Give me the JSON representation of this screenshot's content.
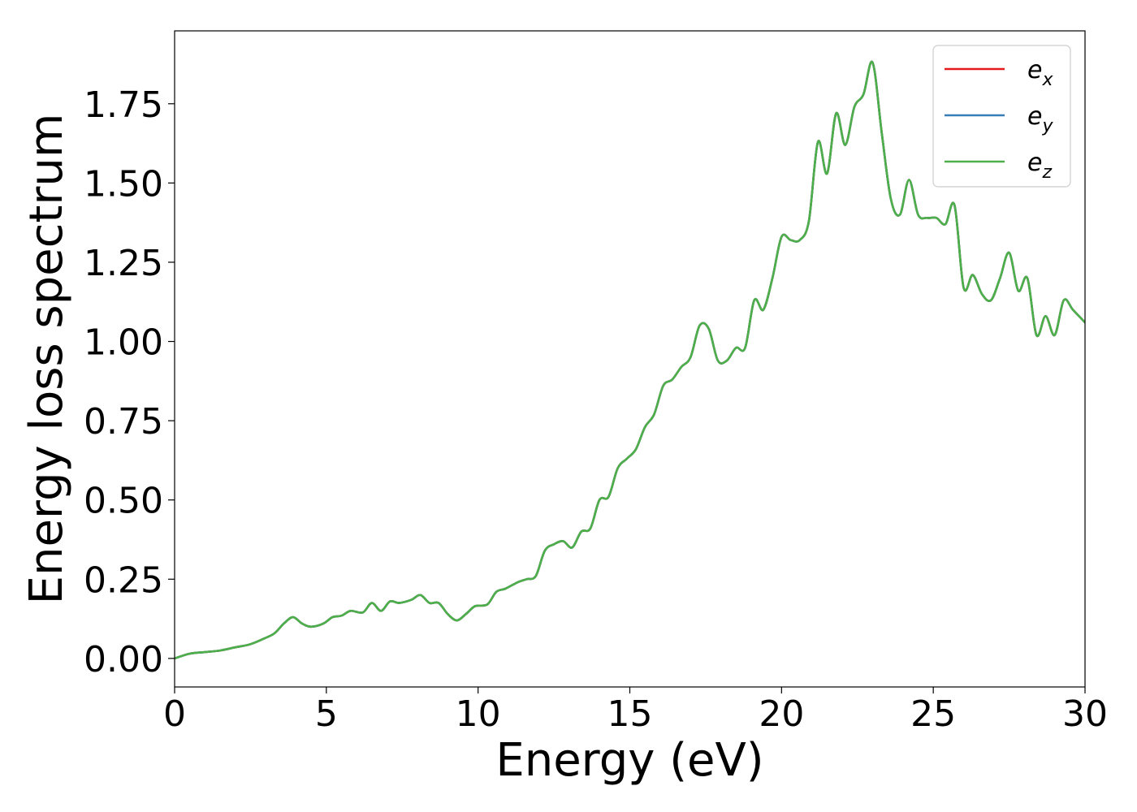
{
  "chart_data": {
    "type": "line",
    "title": "",
    "xlabel": "Energy (eV)",
    "ylabel": "Energy loss spectrum",
    "xlim": [
      0,
      30
    ],
    "ylim": [
      -0.09,
      1.98
    ],
    "xticks": [
      0,
      5,
      10,
      15,
      20,
      25,
      30
    ],
    "xtick_labels": [
      "0",
      "5",
      "10",
      "15",
      "20",
      "25",
      "30"
    ],
    "yticks": [
      0.0,
      0.25,
      0.5,
      0.75,
      1.0,
      1.25,
      1.5,
      1.75
    ],
    "ytick_labels": [
      "0.00",
      "0.25",
      "0.50",
      "0.75",
      "1.00",
      "1.25",
      "1.50",
      "1.75"
    ],
    "grid": false,
    "legend_position": "top-right",
    "x": [
      0,
      0.5,
      1,
      1.5,
      2,
      2.5,
      3,
      3.3,
      3.6,
      3.9,
      4.2,
      4.5,
      4.9,
      5.2,
      5.5,
      5.8,
      6.2,
      6.5,
      6.8,
      7.1,
      7.4,
      7.8,
      8.1,
      8.4,
      8.7,
      9,
      9.3,
      9.6,
      9.9,
      10.3,
      10.6,
      10.9,
      11.3,
      11.6,
      11.9,
      12.2,
      12.5,
      12.8,
      13.1,
      13.4,
      13.7,
      14,
      14.3,
      14.6,
      14.9,
      15.2,
      15.5,
      15.8,
      16.1,
      16.4,
      16.7,
      17,
      17.3,
      17.6,
      17.9,
      18.2,
      18.5,
      18.8,
      19.1,
      19.4,
      19.7,
      20,
      20.3,
      20.6,
      20.9,
      21.2,
      21.5,
      21.8,
      22.1,
      22.4,
      22.7,
      23,
      23.3,
      23.6,
      23.9,
      24.2,
      24.5,
      24.8,
      25.1,
      25.4,
      25.7,
      26,
      26.3,
      26.6,
      26.9,
      27.2,
      27.5,
      27.8,
      28.1,
      28.4,
      28.7,
      29,
      29.3,
      29.6,
      30
    ],
    "series": [
      {
        "name": "e_x",
        "color": "#e41a1c",
        "values": [
          0,
          0.015,
          0.02,
          0.025,
          0.035,
          0.045,
          0.065,
          0.08,
          0.11,
          0.13,
          0.11,
          0.1,
          0.11,
          0.13,
          0.135,
          0.15,
          0.145,
          0.175,
          0.15,
          0.18,
          0.175,
          0.185,
          0.2,
          0.175,
          0.175,
          0.14,
          0.12,
          0.14,
          0.165,
          0.17,
          0.21,
          0.22,
          0.24,
          0.25,
          0.26,
          0.34,
          0.36,
          0.37,
          0.35,
          0.4,
          0.41,
          0.5,
          0.51,
          0.6,
          0.63,
          0.66,
          0.73,
          0.77,
          0.86,
          0.88,
          0.92,
          0.95,
          1.05,
          1.04,
          0.94,
          0.94,
          0.98,
          0.98,
          1.13,
          1.1,
          1.2,
          1.33,
          1.32,
          1.32,
          1.38,
          1.63,
          1.53,
          1.72,
          1.62,
          1.74,
          1.78,
          1.88,
          1.66,
          1.45,
          1.4,
          1.51,
          1.4,
          1.39,
          1.39,
          1.37,
          1.43,
          1.17,
          1.21,
          1.15,
          1.13,
          1.2,
          1.28,
          1.16,
          1.2,
          1.02,
          1.08,
          1.02,
          1.13,
          1.1,
          1.06
        ]
      },
      {
        "name": "e_y",
        "color": "#377eb8",
        "values": [
          0,
          0.015,
          0.02,
          0.025,
          0.035,
          0.045,
          0.065,
          0.08,
          0.11,
          0.13,
          0.11,
          0.1,
          0.11,
          0.13,
          0.135,
          0.15,
          0.145,
          0.175,
          0.15,
          0.18,
          0.175,
          0.185,
          0.2,
          0.175,
          0.175,
          0.14,
          0.12,
          0.14,
          0.165,
          0.17,
          0.21,
          0.22,
          0.24,
          0.25,
          0.26,
          0.34,
          0.36,
          0.37,
          0.35,
          0.4,
          0.41,
          0.5,
          0.51,
          0.6,
          0.63,
          0.66,
          0.73,
          0.77,
          0.86,
          0.88,
          0.92,
          0.95,
          1.05,
          1.04,
          0.94,
          0.94,
          0.98,
          0.98,
          1.13,
          1.1,
          1.2,
          1.33,
          1.32,
          1.32,
          1.38,
          1.63,
          1.53,
          1.72,
          1.62,
          1.74,
          1.78,
          1.88,
          1.66,
          1.45,
          1.4,
          1.51,
          1.4,
          1.39,
          1.39,
          1.37,
          1.43,
          1.17,
          1.21,
          1.15,
          1.13,
          1.2,
          1.28,
          1.16,
          1.2,
          1.02,
          1.08,
          1.02,
          1.13,
          1.1,
          1.06
        ]
      },
      {
        "name": "e_z",
        "color": "#4daf4a",
        "values": [
          0,
          0.015,
          0.02,
          0.025,
          0.035,
          0.045,
          0.065,
          0.08,
          0.11,
          0.13,
          0.11,
          0.1,
          0.11,
          0.13,
          0.135,
          0.15,
          0.145,
          0.175,
          0.15,
          0.18,
          0.175,
          0.185,
          0.2,
          0.175,
          0.175,
          0.14,
          0.12,
          0.14,
          0.165,
          0.17,
          0.21,
          0.22,
          0.24,
          0.25,
          0.26,
          0.34,
          0.36,
          0.37,
          0.35,
          0.4,
          0.41,
          0.5,
          0.51,
          0.6,
          0.63,
          0.66,
          0.73,
          0.77,
          0.86,
          0.88,
          0.92,
          0.95,
          1.05,
          1.04,
          0.94,
          0.94,
          0.98,
          0.98,
          1.13,
          1.1,
          1.2,
          1.33,
          1.32,
          1.32,
          1.38,
          1.63,
          1.53,
          1.72,
          1.62,
          1.74,
          1.78,
          1.88,
          1.66,
          1.45,
          1.4,
          1.51,
          1.4,
          1.39,
          1.39,
          1.37,
          1.43,
          1.17,
          1.21,
          1.15,
          1.13,
          1.2,
          1.28,
          1.16,
          1.2,
          1.02,
          1.08,
          1.02,
          1.13,
          1.1,
          1.06
        ]
      }
    ],
    "legend": [
      {
        "base": "e",
        "sub": "x",
        "color": "#e41a1c"
      },
      {
        "base": "e",
        "sub": "y",
        "color": "#377eb8"
      },
      {
        "base": "e",
        "sub": "z",
        "color": "#4daf4a"
      }
    ]
  }
}
